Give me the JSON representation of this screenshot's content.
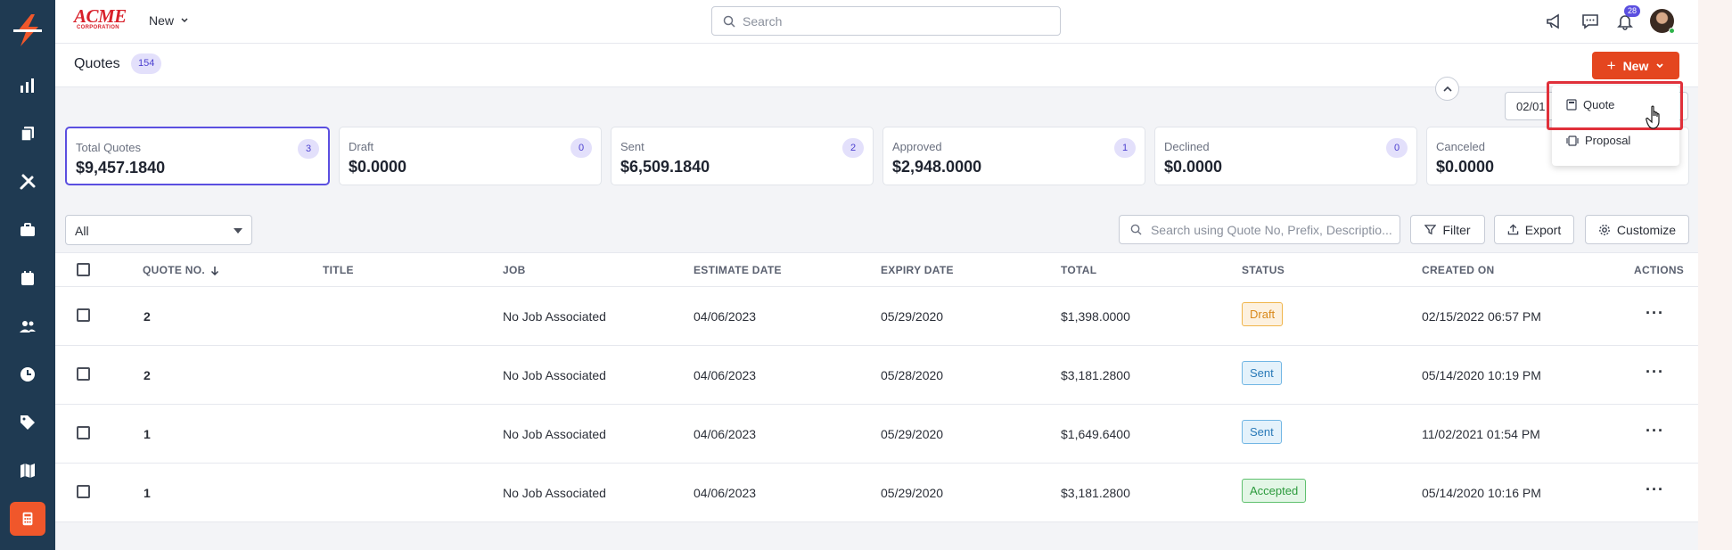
{
  "topbar": {
    "brand": "ACME",
    "brand_sub": "CORPORATION",
    "new_label": "New",
    "search_placeholder": "Search",
    "notification_count": "28"
  },
  "header": {
    "title": "Quotes",
    "count": "154",
    "new_button": "New",
    "date_partial": "02/01"
  },
  "dropdown": {
    "items": [
      {
        "label": "Quote"
      },
      {
        "label": "Proposal"
      }
    ]
  },
  "cards": [
    {
      "label": "Total Quotes",
      "value": "$9,457.1840",
      "count": "3"
    },
    {
      "label": "Draft",
      "value": "$0.0000",
      "count": "0"
    },
    {
      "label": "Sent",
      "value": "$6,509.1840",
      "count": "2"
    },
    {
      "label": "Approved",
      "value": "$2,948.0000",
      "count": "1"
    },
    {
      "label": "Declined",
      "value": "$0.0000",
      "count": "0"
    },
    {
      "label": "Canceled",
      "value": "$0.0000",
      "count": ""
    }
  ],
  "filters": {
    "select_value": "All",
    "search_placeholder": "Search using Quote No, Prefix, Descriptio...",
    "filter_label": "Filter",
    "export_label": "Export",
    "customize_label": "Customize"
  },
  "table": {
    "columns": [
      "QUOTE NO.",
      "TITLE",
      "JOB",
      "ESTIMATE DATE",
      "EXPIRY DATE",
      "TOTAL",
      "STATUS",
      "CREATED ON",
      "ACTIONS"
    ],
    "rows": [
      {
        "quote_no": "2",
        "title": "",
        "job": "No Job Associated",
        "estimate": "04/06/2023",
        "expiry": "05/29/2020",
        "total": "$1,398.0000",
        "status": "Draft",
        "created": "02/15/2022 06:57 PM"
      },
      {
        "quote_no": "2",
        "title": "",
        "job": "No Job Associated",
        "estimate": "04/06/2023",
        "expiry": "05/28/2020",
        "total": "$3,181.2800",
        "status": "Sent",
        "created": "05/14/2020 10:19 PM"
      },
      {
        "quote_no": "1",
        "title": "",
        "job": "No Job Associated",
        "estimate": "04/06/2023",
        "expiry": "05/29/2020",
        "total": "$1,649.6400",
        "status": "Sent",
        "created": "11/02/2021 01:54 PM"
      },
      {
        "quote_no": "1",
        "title": "",
        "job": "No Job Associated",
        "estimate": "04/06/2023",
        "expiry": "05/29/2020",
        "total": "$3,181.2800",
        "status": "Accepted",
        "created": "05/14/2020 10:16 PM"
      }
    ]
  },
  "colors": {
    "sidebar": "#1f3a52",
    "accent": "#e4461f",
    "brand_purple": "#5b4fe0"
  }
}
